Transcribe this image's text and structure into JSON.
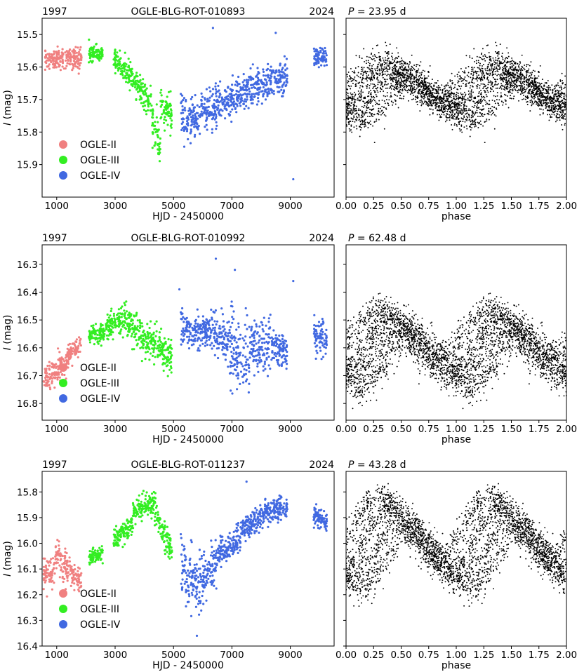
{
  "chart_data": [
    {
      "type": "scatter",
      "star": "OGLE-BLG-ROT-010893",
      "year_start": "1997",
      "year_end": "2024",
      "period_label": "P = 23.95 d",
      "period_days": 23.95,
      "lc_xlabel": "HJD - 2450000",
      "lc_ylabel": "I (mag)",
      "lc_xlim": [
        500,
        10500
      ],
      "lc_xticks": [
        1000,
        3000,
        5000,
        7000,
        9000
      ],
      "lc_ylim": [
        16.0,
        15.45
      ],
      "lc_yticks": [
        15.5,
        15.6,
        15.7,
        15.8,
        15.9
      ],
      "ph_xlabel": "phase",
      "ph_xlim": [
        0,
        2
      ],
      "ph_xticks": [
        "0.00",
        "0.25",
        "0.50",
        "0.75",
        "1.00",
        "1.25",
        "1.50",
        "1.75",
        "2.00"
      ],
      "legend_pos": "lower-left",
      "legend": [
        "OGLE-II",
        "OGLE-III",
        "OGLE-IV"
      ],
      "series": [
        {
          "name": "OGLE-II",
          "color": "#f08080",
          "segments": [
            [
              600,
              1850,
              15.575,
              15.575,
              0.035
            ]
          ]
        },
        {
          "name": "OGLE-III",
          "color": "#33ee22",
          "segments": [
            [
              2100,
              2600,
              15.555,
              15.56,
              0.025
            ],
            [
              2950,
              3600,
              15.575,
              15.63,
              0.04
            ],
            [
              3600,
              4250,
              15.63,
              15.72,
              0.05
            ],
            [
              4250,
              4550,
              15.74,
              15.85,
              0.07
            ],
            [
              4550,
              4950,
              15.72,
              15.75,
              0.06
            ]
          ]
        },
        {
          "name": "OGLE-IV",
          "color": "#4169e1",
          "segments": [
            [
              5250,
              5900,
              15.74,
              15.77,
              0.07
            ],
            [
              5900,
              6600,
              15.74,
              15.71,
              0.07
            ],
            [
              6600,
              7200,
              15.71,
              15.7,
              0.06
            ],
            [
              7200,
              7800,
              15.68,
              15.66,
              0.06
            ],
            [
              7800,
              8400,
              15.66,
              15.64,
              0.06
            ],
            [
              8400,
              8900,
              15.64,
              15.63,
              0.055
            ],
            [
              9800,
              10250,
              15.575,
              15.565,
              0.03
            ]
          ]
        }
      ],
      "phase_curve": {
        "mean": 15.67,
        "amp": 0.06,
        "spread": 0.095,
        "extra_amp": 0.04
      },
      "outliers": [
        [
          6350,
          15.48
        ],
        [
          8500,
          15.495
        ],
        [
          9100,
          15.945
        ]
      ]
    },
    {
      "type": "scatter",
      "star": "OGLE-BLG-ROT-010992",
      "year_start": "1997",
      "year_end": "2024",
      "period_label": "P = 62.48 d",
      "period_days": 62.48,
      "lc_xlabel": "HJD - 2450000",
      "lc_ylabel": "I (mag)",
      "lc_xlim": [
        500,
        10500
      ],
      "lc_xticks": [
        1000,
        3000,
        5000,
        7000,
        9000
      ],
      "lc_ylim": [
        16.86,
        16.23
      ],
      "lc_yticks": [
        16.3,
        16.4,
        16.5,
        16.6,
        16.7,
        16.8
      ],
      "ph_xlabel": "phase",
      "ph_xlim": [
        0,
        2
      ],
      "ph_xticks": [
        "0.00",
        "0.25",
        "0.50",
        "0.75",
        "1.00",
        "1.25",
        "1.50",
        "1.75",
        "2.00"
      ],
      "legend_pos": "lower-left",
      "legend": [
        "OGLE-II",
        "OGLE-III",
        "OGLE-IV"
      ],
      "series": [
        {
          "name": "OGLE-II",
          "color": "#f08080",
          "segments": [
            [
              550,
              950,
              16.71,
              16.69,
              0.05
            ],
            [
              950,
              1400,
              16.69,
              16.64,
              0.06
            ],
            [
              1400,
              1850,
              16.63,
              16.58,
              0.04
            ]
          ]
        },
        {
          "name": "OGLE-III",
          "color": "#33ee22",
          "segments": [
            [
              2100,
              2700,
              16.56,
              16.54,
              0.04
            ],
            [
              2700,
              3300,
              16.53,
              16.5,
              0.05
            ],
            [
              3300,
              3900,
              16.5,
              16.54,
              0.06
            ],
            [
              3900,
              4950,
              16.56,
              16.63,
              0.07
            ]
          ]
        },
        {
          "name": "OGLE-IV",
          "color": "#4169e1",
          "segments": [
            [
              5250,
              6300,
              16.54,
              16.53,
              0.06
            ],
            [
              6300,
              6900,
              16.54,
              16.58,
              0.09
            ],
            [
              6900,
              7600,
              16.59,
              16.64,
              0.16
            ],
            [
              7600,
              8400,
              16.59,
              16.59,
              0.1
            ],
            [
              8400,
              8900,
              16.61,
              16.61,
              0.07
            ],
            [
              9800,
              10250,
              16.55,
              16.58,
              0.07
            ]
          ]
        }
      ],
      "phase_curve": {
        "mean": 16.6,
        "amp": 0.09,
        "spread": 0.13,
        "extra_amp": 0.06
      },
      "outliers": [
        [
          6450,
          16.28
        ],
        [
          7100,
          16.32
        ],
        [
          5200,
          16.39
        ],
        [
          9100,
          16.36
        ]
      ]
    },
    {
      "type": "scatter",
      "star": "OGLE-BLG-ROT-011237",
      "year_start": "1997",
      "year_end": "2024",
      "period_label": "P = 43.28 d",
      "period_days": 43.28,
      "lc_xlabel": "HJD - 2450000",
      "lc_ylabel": "I (mag)",
      "lc_xlim": [
        500,
        10500
      ],
      "lc_xticks": [
        1000,
        3000,
        5000,
        7000,
        9000
      ],
      "lc_ylim": [
        16.4,
        15.72
      ],
      "lc_yticks": [
        15.8,
        15.9,
        16.0,
        16.1,
        16.2,
        16.3,
        16.4
      ],
      "ph_xlabel": "phase",
      "ph_xlim": [
        0,
        2
      ],
      "ph_xticks": [
        "0.00",
        "0.25",
        "0.50",
        "0.75",
        "1.00",
        "1.25",
        "1.50",
        "1.75",
        "2.00"
      ],
      "legend_pos": "lower-left",
      "legend": [
        "OGLE-II",
        "OGLE-III",
        "OGLE-IV"
      ],
      "series": [
        {
          "name": "OGLE-II",
          "color": "#f08080",
          "segments": [
            [
              550,
              950,
              16.13,
              16.1,
              0.07
            ],
            [
              950,
              1450,
              16.05,
              16.1,
              0.08
            ],
            [
              1450,
              1850,
              16.12,
              16.15,
              0.05
            ]
          ]
        },
        {
          "name": "OGLE-III",
          "color": "#33ee22",
          "segments": [
            [
              2100,
              2600,
              16.06,
              16.04,
              0.03
            ],
            [
              2950,
              3600,
              15.99,
              15.92,
              0.04
            ],
            [
              3600,
              4350,
              15.88,
              15.84,
              0.05
            ],
            [
              4350,
              4950,
              15.88,
              16.02,
              0.06
            ]
          ]
        },
        {
          "name": "OGLE-IV",
          "color": "#4169e1",
          "segments": [
            [
              5250,
              5900,
              16.1,
              16.16,
              0.12
            ],
            [
              5900,
              6500,
              16.16,
              16.06,
              0.11
            ],
            [
              6500,
              7300,
              16.04,
              15.98,
              0.06
            ],
            [
              7300,
              8100,
              15.95,
              15.89,
              0.05
            ],
            [
              8100,
              8900,
              15.88,
              15.86,
              0.05
            ],
            [
              9800,
              10250,
              15.89,
              15.92,
              0.05
            ]
          ]
        }
      ],
      "phase_curve": {
        "mean": 16.0,
        "amp": 0.12,
        "spread": 0.12,
        "extra_amp": 0.08
      },
      "outliers": [
        [
          7500,
          15.76
        ],
        [
          5800,
          16.36
        ]
      ]
    }
  ]
}
